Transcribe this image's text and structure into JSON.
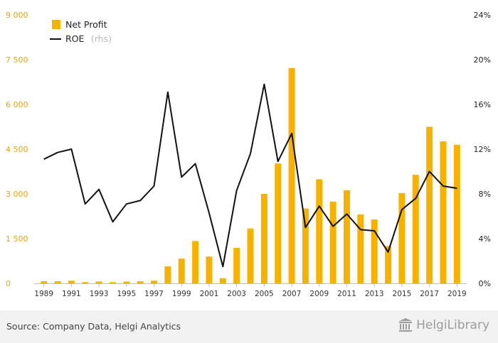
{
  "chart_data": {
    "type": "bar",
    "categories": [
      "1989",
      "1990",
      "1991",
      "1992",
      "1993",
      "1994",
      "1995",
      "1996",
      "1997",
      "1998",
      "1999",
      "2000",
      "2001",
      "2002",
      "2003",
      "2004",
      "2005",
      "2006",
      "2007",
      "2008",
      "2009",
      "2010",
      "2011",
      "2012",
      "2013",
      "2014",
      "2015",
      "2016",
      "2017",
      "2018",
      "2019"
    ],
    "x_tick_labels": [
      "1989",
      "1991",
      "1993",
      "1995",
      "1997",
      "1999",
      "2001",
      "2003",
      "2005",
      "2007",
      "2009",
      "2011",
      "2013",
      "2015",
      "2017",
      "2019"
    ],
    "series": [
      {
        "name": "Net Profit",
        "type": "bar",
        "axis": "left",
        "color": "#f7b200",
        "values": [
          70,
          70,
          90,
          40,
          60,
          40,
          60,
          70,
          90,
          570,
          830,
          1420,
          900,
          170,
          1190,
          1840,
          3000,
          4020,
          7220,
          2510,
          3490,
          2740,
          3120,
          2310,
          2140,
          1250,
          3030,
          3640,
          5250,
          4760,
          4650
        ]
      },
      {
        "name": "ROE",
        "suffix": "(rhs)",
        "type": "line",
        "axis": "right",
        "color": "#111111",
        "values": [
          11.1,
          11.7,
          12.0,
          7.1,
          8.4,
          5.5,
          7.1,
          7.4,
          8.7,
          17.1,
          9.5,
          10.7,
          6.3,
          1.5,
          8.3,
          11.6,
          17.8,
          10.9,
          13.4,
          5.0,
          6.9,
          5.1,
          6.2,
          4.8,
          4.7,
          2.8,
          6.6,
          7.6,
          10.0,
          8.7,
          8.5
        ]
      }
    ],
    "y_left": {
      "min": 0,
      "max": 9000,
      "ticks": [
        "0",
        "1 500",
        "3 000",
        "4 500",
        "6 000",
        "7 500",
        "9 000"
      ]
    },
    "y_right": {
      "min": 0,
      "max": 24,
      "ticks": [
        "0%",
        "4%",
        "8%",
        "12%",
        "16%",
        "20%",
        "24%"
      ]
    },
    "legend": "top-left",
    "grid": false
  },
  "footer": {
    "source": "Source: Company Data, Helgi Analytics",
    "brand": "HelgiLibrary"
  },
  "colors": {
    "accent": "#f7b200",
    "left_axis_text": "#e8a500",
    "line": "#111111",
    "footer_bg": "#f1f1f1"
  }
}
